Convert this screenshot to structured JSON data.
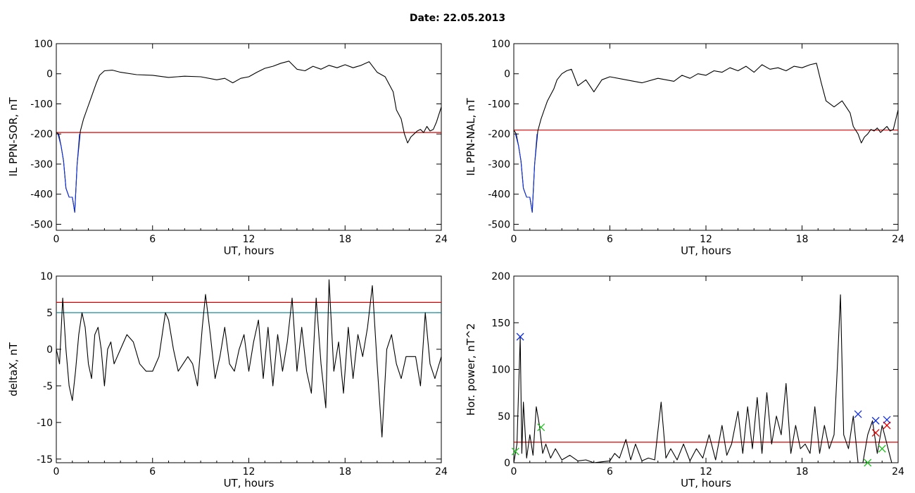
{
  "figure": {
    "title": "Date:  22.05.2013"
  },
  "chart_data": [
    {
      "type": "line",
      "xlabel": "UT, hours",
      "ylabel": "IL PPN-SOR, nT",
      "xlim": [
        0,
        24
      ],
      "ylim": [
        -520,
        100
      ],
      "xticks": [
        0,
        6,
        12,
        18,
        24
      ],
      "yticks": [
        100,
        0,
        -100,
        -200,
        -300,
        -400,
        -500
      ],
      "hlines": [
        {
          "y": -195,
          "color": "#e00000"
        }
      ],
      "series": [
        {
          "color": "#000000",
          "x": [
            0,
            0.15,
            0.3,
            0.45,
            0.6,
            0.8,
            1.0,
            1.15,
            1.3,
            1.5,
            1.7,
            1.9,
            2.1,
            2.3,
            2.5,
            2.7,
            3.0,
            3.5,
            4.0,
            5.0,
            6.0,
            7.0,
            8.0,
            9.0,
            10.0,
            10.5,
            11.0,
            11.5,
            12.0,
            12.5,
            13.0,
            13.5,
            14.0,
            14.5,
            15.0,
            15.5,
            16.0,
            16.5,
            17.0,
            17.5,
            18.0,
            18.5,
            19.0,
            19.5,
            20.0,
            20.5,
            21.0,
            21.2,
            21.5,
            21.7,
            21.9,
            22.1,
            22.3,
            22.5,
            22.7,
            22.9,
            23.1,
            23.3,
            23.5,
            23.7,
            24.0
          ],
          "y": [
            -195,
            -200,
            -240,
            -290,
            -380,
            -410,
            -410,
            -460,
            -300,
            -190,
            -150,
            -120,
            -90,
            -60,
            -30,
            -5,
            10,
            12,
            5,
            -3,
            -5,
            -12,
            -8,
            -10,
            -20,
            -15,
            -30,
            -15,
            -10,
            5,
            18,
            25,
            35,
            42,
            15,
            10,
            25,
            15,
            28,
            20,
            30,
            20,
            28,
            40,
            5,
            -10,
            -60,
            -120,
            -150,
            -200,
            -230,
            -210,
            -200,
            -190,
            -185,
            -195,
            -175,
            -190,
            -185,
            -160,
            -110
          ]
        },
        {
          "color": "#1030e0",
          "x": [
            0.1,
            0.3,
            0.45,
            0.6,
            0.8,
            1.0,
            1.15,
            1.3,
            1.45
          ],
          "y": [
            -200,
            -240,
            -290,
            -380,
            -410,
            -410,
            -460,
            -300,
            -200
          ]
        }
      ]
    },
    {
      "type": "line",
      "xlabel": "UT, hours",
      "ylabel": "IL PPN-NAL, nT",
      "xlim": [
        0,
        24
      ],
      "ylim": [
        -520,
        100
      ],
      "xticks": [
        0,
        6,
        12,
        18,
        24
      ],
      "yticks": [
        100,
        0,
        -100,
        -200,
        -300,
        -400,
        -500
      ],
      "hlines": [
        {
          "y": -187,
          "color": "#e00000"
        }
      ],
      "series": [
        {
          "color": "#000000",
          "x": [
            0,
            0.15,
            0.3,
            0.45,
            0.6,
            0.8,
            1.0,
            1.15,
            1.3,
            1.5,
            1.7,
            1.9,
            2.1,
            2.3,
            2.5,
            2.7,
            3.0,
            3.3,
            3.6,
            4.0,
            4.5,
            5.0,
            5.5,
            6.0,
            7.0,
            8.0,
            9.0,
            10.0,
            10.5,
            11.0,
            11.5,
            12.0,
            12.5,
            13.0,
            13.5,
            14.0,
            14.5,
            15.0,
            15.5,
            16.0,
            16.5,
            17.0,
            17.5,
            18.0,
            18.5,
            18.9,
            19.2,
            19.5,
            20.0,
            20.5,
            21.0,
            21.2,
            21.5,
            21.7,
            21.9,
            22.1,
            22.3,
            22.5,
            22.7,
            22.9,
            23.1,
            23.3,
            23.5,
            23.7,
            24.0
          ],
          "y": [
            -187,
            -200,
            -240,
            -290,
            -380,
            -410,
            -410,
            -460,
            -300,
            -190,
            -150,
            -120,
            -90,
            -70,
            -50,
            -20,
            0,
            10,
            15,
            -40,
            -20,
            -60,
            -20,
            -10,
            -20,
            -30,
            -15,
            -25,
            -5,
            -15,
            0,
            -5,
            10,
            5,
            20,
            10,
            25,
            5,
            30,
            15,
            20,
            10,
            25,
            20,
            30,
            35,
            -30,
            -90,
            -110,
            -90,
            -130,
            -175,
            -200,
            -230,
            -210,
            -200,
            -185,
            -190,
            -180,
            -195,
            -185,
            -175,
            -190,
            -185,
            -120
          ]
        },
        {
          "color": "#1030e0",
          "x": [
            0.1,
            0.3,
            0.45,
            0.6,
            0.8,
            1.0,
            1.15,
            1.3,
            1.45
          ],
          "y": [
            -200,
            -240,
            -290,
            -380,
            -410,
            -410,
            -460,
            -300,
            -200
          ]
        }
      ]
    },
    {
      "type": "line",
      "xlabel": "UT, hours",
      "ylabel": "deltaX, nT",
      "xlim": [
        0,
        24
      ],
      "ylim": [
        -15.5,
        10
      ],
      "xticks": [
        0,
        6,
        12,
        18,
        24
      ],
      "yticks": [
        10,
        5,
        0,
        -5,
        -10,
        -15
      ],
      "hlines": [
        {
          "y": 6.4,
          "color": "#e00000"
        },
        {
          "y": 5.0,
          "color": "#008090"
        }
      ],
      "series": [
        {
          "color": "#000000",
          "x": [
            0,
            0.2,
            0.4,
            0.6,
            0.8,
            1.0,
            1.2,
            1.4,
            1.6,
            1.8,
            2.0,
            2.2,
            2.4,
            2.6,
            2.8,
            3.0,
            3.2,
            3.4,
            3.6,
            3.8,
            4.0,
            4.4,
            4.8,
            5.2,
            5.6,
            6.0,
            6.4,
            6.8,
            7.0,
            7.3,
            7.6,
            7.9,
            8.2,
            8.5,
            8.8,
            9.1,
            9.3,
            9.6,
            9.9,
            10.2,
            10.5,
            10.8,
            11.1,
            11.4,
            11.7,
            12.0,
            12.3,
            12.6,
            12.9,
            13.2,
            13.5,
            13.8,
            14.1,
            14.4,
            14.7,
            15.0,
            15.3,
            15.6,
            15.9,
            16.2,
            16.5,
            16.8,
            17.0,
            17.3,
            17.6,
            17.9,
            18.2,
            18.5,
            18.8,
            19.1,
            19.4,
            19.7,
            20.0,
            20.3,
            20.6,
            20.9,
            21.2,
            21.5,
            21.8,
            22.1,
            22.4,
            22.7,
            23.0,
            23.3,
            23.6,
            24.0
          ],
          "y": [
            0,
            -2,
            7,
            0,
            -5,
            -7,
            -3,
            2,
            5,
            3,
            -2,
            -4,
            2,
            3,
            0,
            -5,
            0,
            1,
            -2,
            -1,
            0,
            2,
            1,
            -2,
            -3,
            -3,
            -1,
            5,
            4,
            0,
            -3,
            -2,
            -1,
            -2,
            -5,
            3,
            7.5,
            2,
            -4,
            -1,
            3,
            -2,
            -3,
            0,
            2,
            -3,
            1,
            4,
            -4,
            3,
            -5,
            2,
            -3,
            1,
            7,
            -3,
            3,
            -3,
            -6,
            7,
            -2,
            -8,
            9.5,
            -3,
            1,
            -6,
            3,
            -4,
            2,
            -1,
            3,
            8.7,
            -2,
            -12,
            0,
            2,
            -2,
            -4,
            -1,
            -1,
            -1,
            -5,
            5,
            -2,
            -4,
            -1
          ]
        }
      ]
    },
    {
      "type": "line",
      "xlabel": "UT, hours",
      "ylabel": "Hor. power, nT^2",
      "xlim": [
        0,
        24
      ],
      "ylim": [
        0,
        200
      ],
      "xticks": [
        0,
        6,
        12,
        18,
        24
      ],
      "yticks": [
        200,
        150,
        100,
        50,
        0
      ],
      "hlines": [
        {
          "y": 22,
          "color": "#e00000"
        }
      ],
      "series": [
        {
          "color": "#000000",
          "x": [
            0,
            0.2,
            0.4,
            0.5,
            0.6,
            0.8,
            1.0,
            1.2,
            1.4,
            1.6,
            1.8,
            2.0,
            2.3,
            2.6,
            3.0,
            3.5,
            4.0,
            4.5,
            5.0,
            5.5,
            6.0,
            6.3,
            6.6,
            7.0,
            7.3,
            7.6,
            8.0,
            8.4,
            8.8,
            9.2,
            9.5,
            9.8,
            10.2,
            10.6,
            11.0,
            11.4,
            11.8,
            12.2,
            12.6,
            13.0,
            13.3,
            13.6,
            14.0,
            14.3,
            14.6,
            14.9,
            15.2,
            15.5,
            15.8,
            16.1,
            16.4,
            16.7,
            17.0,
            17.3,
            17.6,
            17.9,
            18.2,
            18.5,
            18.8,
            19.1,
            19.4,
            19.7,
            20.0,
            20.2,
            20.4,
            20.6,
            20.9,
            21.2,
            21.5,
            21.8,
            22.1,
            22.4,
            22.7,
            23.0,
            23.3,
            23.6,
            24.0
          ],
          "y": [
            0,
            20,
            135,
            10,
            65,
            5,
            30,
            8,
            60,
            40,
            10,
            20,
            5,
            15,
            3,
            8,
            2,
            3,
            0,
            1,
            2,
            10,
            5,
            25,
            3,
            20,
            2,
            5,
            3,
            65,
            5,
            15,
            3,
            20,
            2,
            15,
            5,
            30,
            3,
            40,
            8,
            20,
            55,
            10,
            60,
            15,
            70,
            10,
            75,
            20,
            50,
            30,
            85,
            10,
            40,
            15,
            20,
            10,
            60,
            10,
            40,
            15,
            30,
            100,
            180,
            30,
            15,
            50,
            0,
            0,
            30,
            45,
            10,
            40,
            20,
            0,
            0
          ]
        }
      ],
      "markers": [
        {
          "x": 0.4,
          "y": 135,
          "color": "#1030e0"
        },
        {
          "x": 0.1,
          "y": 12,
          "color": "#20c020"
        },
        {
          "x": 1.7,
          "y": 38,
          "color": "#20c020"
        },
        {
          "x": 21.5,
          "y": 52,
          "color": "#1030e0"
        },
        {
          "x": 22.6,
          "y": 45,
          "color": "#1030e0"
        },
        {
          "x": 23.3,
          "y": 46,
          "color": "#1030e0"
        },
        {
          "x": 23.3,
          "y": 40,
          "color": "#e00000"
        },
        {
          "x": 22.6,
          "y": 32,
          "color": "#e00000"
        },
        {
          "x": 22.1,
          "y": 0,
          "color": "#20c020"
        },
        {
          "x": 23.0,
          "y": 15,
          "color": "#20c020"
        }
      ]
    }
  ]
}
